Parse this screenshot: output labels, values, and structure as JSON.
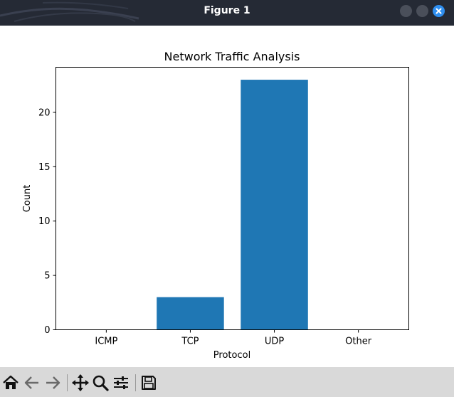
{
  "window": {
    "title": "Figure 1"
  },
  "chart_data": {
    "type": "bar",
    "title": "Network Traffic Analysis",
    "xlabel": "Protocol",
    "ylabel": "Count",
    "categories": [
      "ICMP",
      "TCP",
      "UDP",
      "Other"
    ],
    "values": [
      0,
      3,
      23,
      0
    ],
    "ylim": [
      0,
      24.15
    ],
    "yticks": [
      0,
      5,
      10,
      15,
      20
    ],
    "bar_color": "#1f77b4",
    "grid": false,
    "legend": "none"
  },
  "toolbar": {
    "items": [
      "home-icon",
      "back-icon",
      "forward-icon",
      "pan-icon",
      "zoom-icon",
      "configure-icon",
      "save-icon"
    ]
  },
  "colors": {
    "titlebar": "#252a35",
    "toolbar": "#d9d9d9",
    "close_button": "#2f8ff0"
  }
}
